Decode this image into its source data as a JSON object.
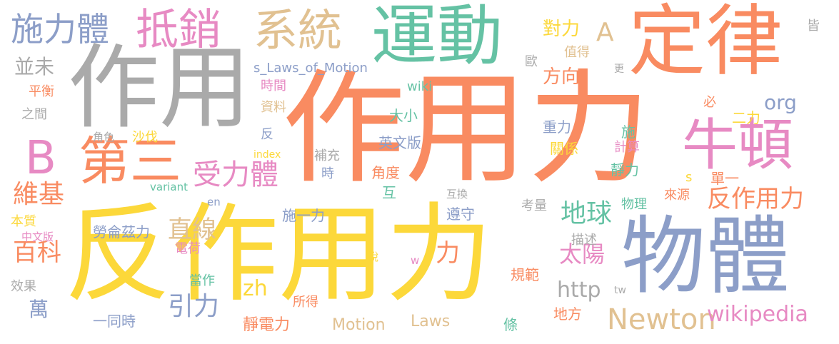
{
  "words": [
    {
      "text": "作用力",
      "color": "#f98b61",
      "size": "xxl"
    },
    {
      "text": "反作用力",
      "color": "#fcd83a",
      "size": "xxl"
    },
    {
      "text": "作用",
      "color": "#aaaaaa",
      "size": "xl"
    },
    {
      "text": "物體",
      "color": "#8c9ec8",
      "size": "xl"
    },
    {
      "text": "定律",
      "color": "#f98b61",
      "size": "xl"
    },
    {
      "text": "運動",
      "color": "#65c2a4",
      "size": "l"
    },
    {
      "text": "牛頓",
      "color": "#e78ac3",
      "size": "l"
    },
    {
      "text": "第三",
      "color": "#f98b61",
      "size": "l"
    },
    {
      "text": "系統",
      "color": "#e1c191",
      "size": "l"
    },
    {
      "text": "抵銷",
      "color": "#e78ac3",
      "size": "l"
    },
    {
      "text": "施力體",
      "color": "#8c9ec8",
      "size": "m"
    },
    {
      "text": "B",
      "color": "#e78ac3",
      "size": "l"
    },
    {
      "text": "受力體",
      "color": "#e78ac3",
      "size": "m"
    },
    {
      "text": "反作用力",
      "color": "#f98b61",
      "size": "m"
    },
    {
      "text": "Newton",
      "color": "#e1c191",
      "size": "m"
    },
    {
      "text": "地球",
      "color": "#65c2a4",
      "size": "m"
    },
    {
      "text": "太陽",
      "color": "#e78ac3",
      "size": "m"
    },
    {
      "text": "維基",
      "color": "#f98b61",
      "size": "m"
    },
    {
      "text": "百科",
      "color": "#f98b61",
      "size": "m"
    },
    {
      "text": "直線",
      "color": "#e1c191",
      "size": "m"
    },
    {
      "text": "引力",
      "color": "#8c9ec8",
      "size": "m"
    },
    {
      "text": "wikipedia",
      "color": "#e78ac3",
      "size": "s"
    },
    {
      "text": "http",
      "color": "#aaaaaa",
      "size": "s"
    },
    {
      "text": "力",
      "color": "#f98b61",
      "size": "m"
    },
    {
      "text": "A",
      "color": "#e1c191",
      "size": "m"
    },
    {
      "text": "並未",
      "color": "#aaaaaa",
      "size": "s"
    },
    {
      "text": "對力",
      "color": "#fcd83a",
      "size": "s"
    },
    {
      "text": "方向",
      "color": "#f98b61",
      "size": "s"
    },
    {
      "text": "org",
      "color": "#8c9ec8",
      "size": "s"
    },
    {
      "text": "萬",
      "color": "#8c9ec8",
      "size": "s"
    },
    {
      "text": "zh",
      "color": "#fcd83a",
      "size": "s"
    },
    {
      "text": "s_Laws_of_Motion",
      "color": "#8c9ec8",
      "size": "xs"
    },
    {
      "text": "平衡",
      "color": "#f98b61",
      "size": "xs"
    },
    {
      "text": "之間",
      "color": "#aaaaaa",
      "size": "xs"
    },
    {
      "text": "角色",
      "color": "#aaaaaa",
      "size": "xs"
    },
    {
      "text": "沙伐",
      "color": "#fcd83a",
      "size": "xs"
    },
    {
      "text": "index",
      "color": "#fcd83a",
      "size": "xs"
    },
    {
      "text": "variant",
      "color": "#65c2a4",
      "size": "xs"
    },
    {
      "text": "en",
      "color": "#8c9ec8",
      "size": "xs"
    },
    {
      "text": "本質",
      "color": "#fcd83a",
      "size": "xs"
    },
    {
      "text": "中文版",
      "color": "#e78ac3",
      "size": "xs"
    },
    {
      "text": "效果",
      "color": "#aaaaaa",
      "size": "xs"
    },
    {
      "text": "勞侖茲力",
      "color": "#8c9ec8",
      "size": "xs"
    },
    {
      "text": "電荷",
      "color": "#e78ac3",
      "size": "xs"
    },
    {
      "text": "當作",
      "color": "#65c2a4",
      "size": "xs"
    },
    {
      "text": "一同時",
      "color": "#8c9ec8",
      "size": "xs"
    },
    {
      "text": "靜電力",
      "color": "#f98b61",
      "size": "xs"
    },
    {
      "text": "所得",
      "color": "#f98b61",
      "size": "xs"
    },
    {
      "text": "Motion",
      "color": "#e1c191",
      "size": "xs"
    },
    {
      "text": "Laws",
      "color": "#e1c191",
      "size": "xs"
    },
    {
      "text": "時間",
      "color": "#e78ac3",
      "size": "xs"
    },
    {
      "text": "資料",
      "color": "#e1c191",
      "size": "xs"
    },
    {
      "text": "反",
      "color": "#8c9ec8",
      "size": "xs"
    },
    {
      "text": "補充",
      "color": "#aaaaaa",
      "size": "xs"
    },
    {
      "text": "時",
      "color": "#8c9ec8",
      "size": "xs"
    },
    {
      "text": "wiki",
      "color": "#65c2a4",
      "size": "xs"
    },
    {
      "text": "大小",
      "color": "#65c2a4",
      "size": "xs"
    },
    {
      "text": "英文版",
      "color": "#8c9ec8",
      "size": "xs"
    },
    {
      "text": "角度",
      "color": "#f98b61",
      "size": "xs"
    },
    {
      "text": "互",
      "color": "#65c2a4",
      "size": "xs"
    },
    {
      "text": "施一力",
      "color": "#8c9ec8",
      "size": "xs"
    },
    {
      "text": "遵守",
      "color": "#8c9ec8",
      "size": "xs"
    },
    {
      "text": "說",
      "color": "#fcd83a",
      "size": "xxs"
    },
    {
      "text": "w",
      "color": "#e78ac3",
      "size": "xxs"
    },
    {
      "text": "規範",
      "color": "#f98b61",
      "size": "xs"
    },
    {
      "text": "條",
      "color": "#65c2a4",
      "size": "xs"
    },
    {
      "text": "地方",
      "color": "#f98b61",
      "size": "xs"
    },
    {
      "text": "互換",
      "color": "#aaaaaa",
      "size": "xxs"
    },
    {
      "text": "考量",
      "color": "#aaaaaa",
      "size": "xs"
    },
    {
      "text": "描述",
      "color": "#aaaaaa",
      "size": "xs"
    },
    {
      "text": "歐",
      "color": "#aaaaaa",
      "size": "xs"
    },
    {
      "text": "值得",
      "color": "#e1c191",
      "size": "xs"
    },
    {
      "text": "更",
      "color": "#aaaaaa",
      "size": "xxs"
    },
    {
      "text": "必",
      "color": "#f98b61",
      "size": "xs"
    },
    {
      "text": "二力",
      "color": "#fcd83a",
      "size": "xs"
    },
    {
      "text": "重力",
      "color": "#8c9ec8",
      "size": "xs"
    },
    {
      "text": "施",
      "color": "#65c2a4",
      "size": "xs"
    },
    {
      "text": "關係",
      "color": "#fcd83a",
      "size": "xs"
    },
    {
      "text": "計算",
      "color": "#e78ac3",
      "size": "xs"
    },
    {
      "text": "靜力",
      "color": "#65c2a4",
      "size": "xs"
    },
    {
      "text": "s",
      "color": "#fcd83a",
      "size": "xs"
    },
    {
      "text": "單一",
      "color": "#f98b61",
      "size": "xs"
    },
    {
      "text": "物理",
      "color": "#65c2a4",
      "size": "xs"
    },
    {
      "text": "來源",
      "color": "#f98b61",
      "size": "xs"
    },
    {
      "text": "tw",
      "color": "#aaaaaa",
      "size": "xxs"
    },
    {
      "text": "皆",
      "color": "#aaaaaa",
      "size": "xs"
    }
  ]
}
